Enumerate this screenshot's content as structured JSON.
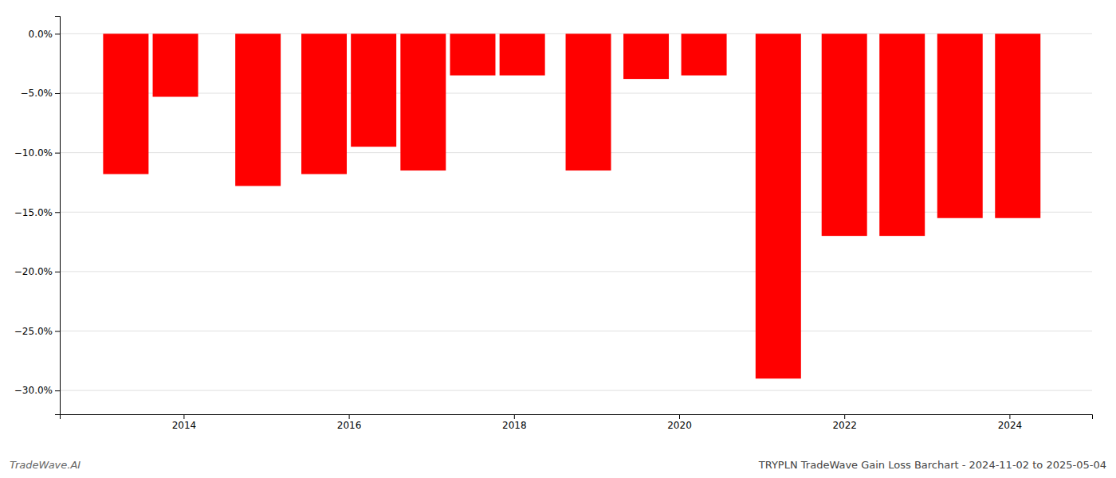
{
  "chart_data": {
    "type": "bar",
    "title": "TRYPLN TradeWave Gain Loss Barchart - 2024-11-02 to 2025-05-04",
    "annotations": [
      "TradeWave.AI"
    ],
    "x": [
      2013.3,
      2013.9,
      2014.9,
      2015.7,
      2016.3,
      2016.9,
      2017.5,
      2018.1,
      2018.9,
      2019.6,
      2020.3,
      2021.2,
      2022.0,
      2022.7,
      2023.4,
      2024.1
    ],
    "values": [
      -11.8,
      -5.3,
      -12.8,
      -11.8,
      -9.5,
      -11.5,
      -3.5,
      -3.5,
      -11.5,
      -3.8,
      -3.5,
      -29.0,
      -17.0,
      -17.0,
      -15.5,
      -15.5
    ],
    "color": "#ff0000",
    "xlim": [
      2012.5,
      2025.0
    ],
    "xticks": [
      2014,
      2016,
      2018,
      2020,
      2022,
      2024
    ],
    "ylim": [
      -32,
      1.5
    ],
    "yticks": [
      {
        "value": 0.0,
        "label": "0.0%"
      },
      {
        "value": -5.0,
        "label": "−5.0%"
      },
      {
        "value": -10.0,
        "label": "−10.0%"
      },
      {
        "value": -15.0,
        "label": "−15.0%"
      },
      {
        "value": -20.0,
        "label": "−20.0%"
      },
      {
        "value": -25.0,
        "label": "−25.0%"
      },
      {
        "value": -30.0,
        "label": "−30.0%"
      }
    ],
    "grid": true
  }
}
